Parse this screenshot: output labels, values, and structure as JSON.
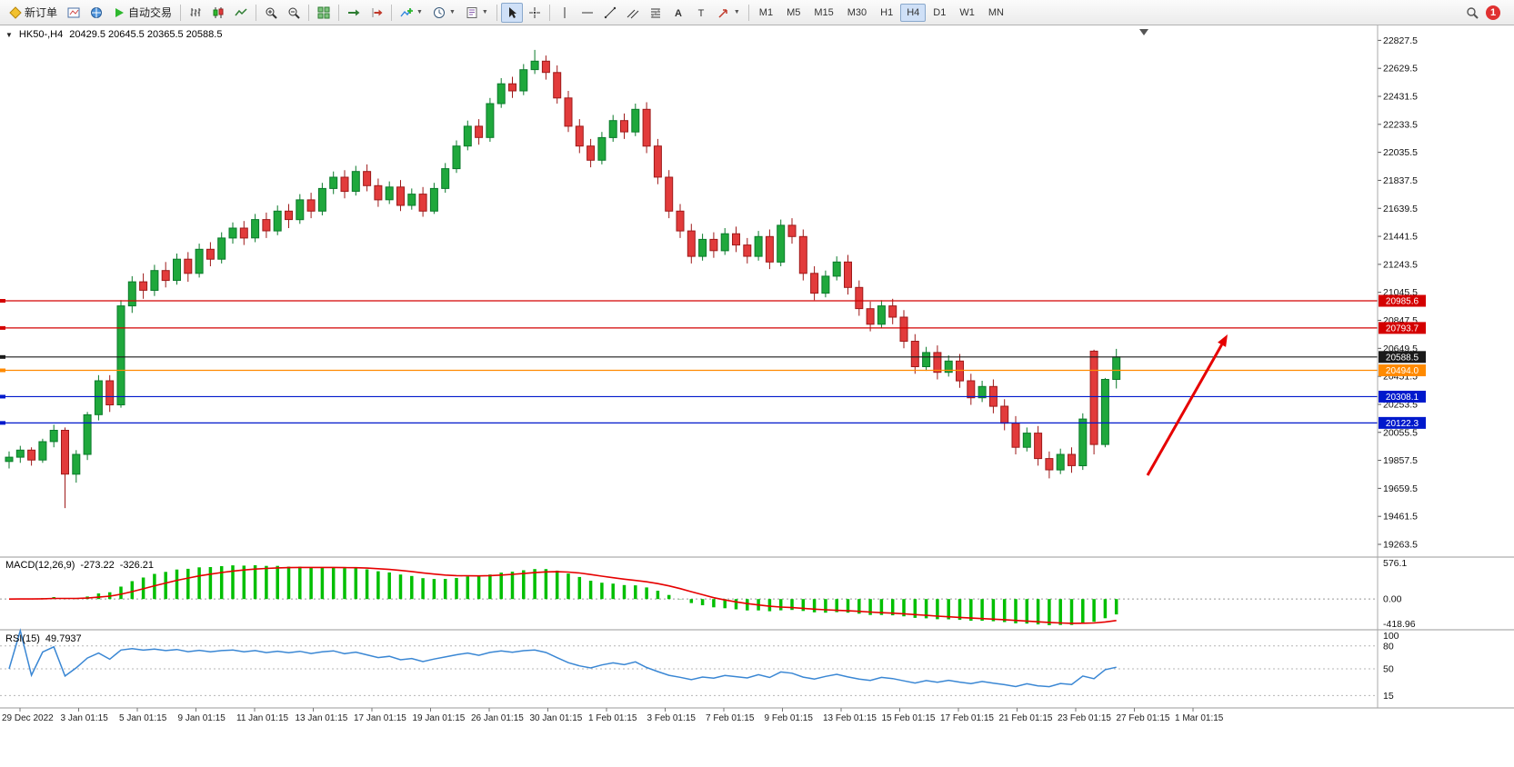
{
  "toolbar": {
    "new_order_label": "新订单",
    "autotrading_label": "自动交易",
    "timeframes": [
      "M1",
      "M5",
      "M15",
      "M30",
      "H1",
      "H4",
      "D1",
      "W1",
      "MN"
    ],
    "active_timeframe": "H4",
    "notification_badge": "1",
    "icons": [
      "new-order-icon",
      "chart-window-icon",
      "profiles-icon",
      "autotrading-play-icon",
      "bar-chart-icon",
      "candlestick-chart-icon",
      "line-chart-icon",
      "zoom-in-icon",
      "zoom-out-icon",
      "tile-windows-icon",
      "autoscroll-icon",
      "chart-shift-icon",
      "indicators-icon",
      "periods-clock-icon",
      "templates-icon",
      "cursor-icon",
      "crosshair-icon",
      "vertical-line-icon",
      "horizontal-line-icon",
      "trendline-icon",
      "channel-icon",
      "fibonacci-icon",
      "text-icon",
      "label-icon",
      "shapes-arrow-icon",
      "search-icon"
    ]
  },
  "chart": {
    "symbol_period": "HK50-,H4",
    "ohlc_text": "20429.5 20645.5 20365.5 20588.5"
  },
  "chart_data": {
    "type": "candlestick",
    "symbol": "HK50-",
    "timeframe": "H4",
    "last_ohlc": {
      "open": 20429.5,
      "high": 20645.5,
      "low": 20365.5,
      "close": 20588.5
    },
    "up_color": "#1fa83c",
    "up_border": "#0b7a2b",
    "down_color": "#e23b3b",
    "down_border": "#9e1a1a",
    "candles": [
      [
        19850,
        19920,
        19800,
        19880
      ],
      [
        19880,
        19960,
        19840,
        19930
      ],
      [
        19930,
        19950,
        19820,
        19860
      ],
      [
        19860,
        20010,
        19840,
        19990
      ],
      [
        19990,
        20110,
        19950,
        20070
      ],
      [
        20070,
        20090,
        19520,
        19760
      ],
      [
        19760,
        19930,
        19700,
        19900
      ],
      [
        19900,
        20200,
        19860,
        20180
      ],
      [
        20180,
        20460,
        20140,
        20420
      ],
      [
        20420,
        20460,
        20200,
        20250
      ],
      [
        20250,
        20990,
        20230,
        20950
      ],
      [
        20950,
        21160,
        20900,
        21120
      ],
      [
        21120,
        21180,
        21000,
        21060
      ],
      [
        21060,
        21240,
        21020,
        21200
      ],
      [
        21200,
        21260,
        21080,
        21130
      ],
      [
        21130,
        21320,
        21100,
        21280
      ],
      [
        21280,
        21330,
        21120,
        21180
      ],
      [
        21180,
        21390,
        21150,
        21350
      ],
      [
        21350,
        21400,
        21230,
        21280
      ],
      [
        21280,
        21470,
        21250,
        21430
      ],
      [
        21430,
        21540,
        21390,
        21500
      ],
      [
        21500,
        21550,
        21380,
        21430
      ],
      [
        21430,
        21600,
        21400,
        21560
      ],
      [
        21560,
        21610,
        21430,
        21480
      ],
      [
        21480,
        21660,
        21450,
        21620
      ],
      [
        21620,
        21670,
        21500,
        21560
      ],
      [
        21560,
        21740,
        21530,
        21700
      ],
      [
        21700,
        21750,
        21570,
        21620
      ],
      [
        21620,
        21820,
        21590,
        21780
      ],
      [
        21780,
        21900,
        21740,
        21860
      ],
      [
        21860,
        21910,
        21710,
        21760
      ],
      [
        21760,
        21940,
        21730,
        21900
      ],
      [
        21900,
        21950,
        21760,
        21800
      ],
      [
        21800,
        21850,
        21650,
        21700
      ],
      [
        21700,
        21830,
        21670,
        21790
      ],
      [
        21790,
        21840,
        21620,
        21660
      ],
      [
        21660,
        21780,
        21630,
        21740
      ],
      [
        21740,
        21790,
        21580,
        21620
      ],
      [
        21620,
        21820,
        21600,
        21780
      ],
      [
        21780,
        21960,
        21750,
        21920
      ],
      [
        21920,
        22120,
        21890,
        22080
      ],
      [
        22080,
        22260,
        22050,
        22220
      ],
      [
        22220,
        22270,
        22090,
        22140
      ],
      [
        22140,
        22420,
        22110,
        22380
      ],
      [
        22380,
        22560,
        22350,
        22520
      ],
      [
        22520,
        22570,
        22420,
        22470
      ],
      [
        22470,
        22660,
        22440,
        22620
      ],
      [
        22620,
        22760,
        22590,
        22680
      ],
      [
        22680,
        22720,
        22550,
        22600
      ],
      [
        22600,
        22650,
        22380,
        22420
      ],
      [
        22420,
        22470,
        22180,
        22220
      ],
      [
        22220,
        22270,
        22030,
        22080
      ],
      [
        22080,
        22130,
        21930,
        21980
      ],
      [
        21980,
        22180,
        21950,
        22140
      ],
      [
        22140,
        22300,
        22110,
        22260
      ],
      [
        22260,
        22310,
        22130,
        22180
      ],
      [
        22180,
        22380,
        22150,
        22340
      ],
      [
        22340,
        22390,
        22030,
        22080
      ],
      [
        22080,
        22130,
        21810,
        21860
      ],
      [
        21860,
        21910,
        21570,
        21620
      ],
      [
        21620,
        21670,
        21430,
        21480
      ],
      [
        21480,
        21530,
        21250,
        21300
      ],
      [
        21300,
        21460,
        21270,
        21420
      ],
      [
        21420,
        21470,
        21290,
        21340
      ],
      [
        21340,
        21500,
        21310,
        21460
      ],
      [
        21460,
        21510,
        21330,
        21380
      ],
      [
        21380,
        21430,
        21250,
        21300
      ],
      [
        21300,
        21480,
        21270,
        21440
      ],
      [
        21440,
        21490,
        21210,
        21260
      ],
      [
        21260,
        21560,
        21230,
        21520
      ],
      [
        21520,
        21570,
        21390,
        21440
      ],
      [
        21440,
        21490,
        21130,
        21180
      ],
      [
        21180,
        21230,
        20990,
        21040
      ],
      [
        21040,
        21200,
        21010,
        21160
      ],
      [
        21160,
        21300,
        21130,
        21260
      ],
      [
        21260,
        21310,
        21030,
        21080
      ],
      [
        21080,
        21130,
        20880,
        20930
      ],
      [
        20930,
        20980,
        20770,
        20820
      ],
      [
        20820,
        20990,
        20790,
        20950
      ],
      [
        20950,
        21000,
        20820,
        20870
      ],
      [
        20870,
        20920,
        20650,
        20700
      ],
      [
        20700,
        20750,
        20470,
        20520
      ],
      [
        20520,
        20660,
        20490,
        20620
      ],
      [
        20620,
        20670,
        20430,
        20480
      ],
      [
        20480,
        20600,
        20450,
        20560
      ],
      [
        20560,
        20610,
        20370,
        20420
      ],
      [
        20420,
        20470,
        20250,
        20300
      ],
      [
        20300,
        20420,
        20270,
        20380
      ],
      [
        20380,
        20430,
        20190,
        20240
      ],
      [
        20240,
        20290,
        20070,
        20120
      ],
      [
        20120,
        20170,
        19900,
        19950
      ],
      [
        19950,
        20090,
        19920,
        20050
      ],
      [
        20050,
        20100,
        19820,
        19870
      ],
      [
        19870,
        19920,
        19730,
        19790
      ],
      [
        19790,
        19940,
        19760,
        19900
      ],
      [
        19900,
        19950,
        19770,
        19820
      ],
      [
        19820,
        20190,
        19790,
        20150
      ],
      [
        20630,
        20640,
        19900,
        19970
      ],
      [
        19970,
        20440,
        19950,
        20430
      ],
      [
        20429.5,
        20645.5,
        20365.5,
        20588.5
      ]
    ],
    "y_axis": {
      "ticks": [
        22827.5,
        22629.5,
        22431.5,
        22233.5,
        22035.5,
        21837.5,
        21639.5,
        21441.5,
        21243.5,
        21045.5,
        20847.5,
        20649.5,
        20451.5,
        20253.5,
        20055.5,
        19857.5,
        19659.5,
        19461.5,
        19263.5
      ]
    },
    "x_axis": {
      "labels": [
        "29 Dec 2022",
        "3 Jan 01:15",
        "5 Jan 01:15",
        "9 Jan 01:15",
        "11 Jan 01:15",
        "13 Jan 01:15",
        "17 Jan 01:15",
        "19 Jan 01:15",
        "26 Jan 01:15",
        "30 Jan 01:15",
        "1 Feb 01:15",
        "3 Feb 01:15",
        "7 Feb 01:15",
        "9 Feb 01:15",
        "13 Feb 01:15",
        "15 Feb 01:15",
        "17 Feb 01:15",
        "21 Feb 01:15",
        "23 Feb 01:15",
        "27 Feb 01:15",
        "1 Mar 01:15"
      ]
    },
    "hlines": [
      {
        "price": 20985.6,
        "label": "20985.6",
        "color": "#d40000"
      },
      {
        "price": 20793.7,
        "label": "20793.7",
        "color": "#d40000"
      },
      {
        "price": 20588.5,
        "label": "20588.5",
        "color": "#1a1a1a"
      },
      {
        "price": 20494.0,
        "label": "20494.0",
        "color": "#ff8a00"
      },
      {
        "price": 20308.1,
        "label": "20308.1",
        "color": "#0019cc"
      },
      {
        "price": 20122.3,
        "label": "20122.3",
        "color": "#0019cc"
      }
    ],
    "macd": {
      "header": "MACD(12,26,9)",
      "value": "-273.22",
      "signal_value": "-326.21",
      "params": [
        12,
        26,
        9
      ],
      "axis_labels": [
        "576.1",
        "0.00",
        "-418.96"
      ],
      "histogram_color": "#00bf00",
      "signal_color": "#e60000"
    },
    "rsi": {
      "header": "RSI(15)",
      "value": "49.7937",
      "period": 15,
      "axis_labels": [
        "100",
        "80",
        "50",
        "15"
      ],
      "levels": [
        80,
        50,
        15
      ],
      "line_color": "#3a87d4"
    },
    "annotation_arrow": {
      "from": [
        1262,
        523
      ],
      "to": [
        1350,
        368
      ],
      "color": "#e60000"
    }
  }
}
